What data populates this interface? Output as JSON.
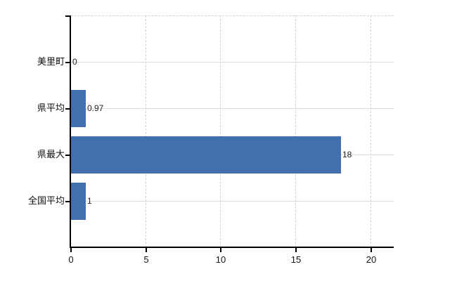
{
  "chart_data": {
    "type": "bar",
    "orientation": "horizontal",
    "title": "",
    "xlabel": "",
    "ylabel": "",
    "categories": [
      "美里町",
      "県平均",
      "県最大",
      "全国平均"
    ],
    "values": [
      0,
      0.97,
      18,
      1
    ],
    "value_labels": [
      "0",
      "0.97",
      "18",
      "1"
    ],
    "xlim": [
      0,
      20
    ],
    "x_ticks": [
      0,
      5,
      10,
      15,
      20
    ],
    "x_tick_labels": [
      "0",
      "5",
      "10",
      "15",
      "20"
    ],
    "grid": true,
    "legend": "none",
    "colors": {
      "bar": "#426fad",
      "axis": "#000000",
      "gridline_solid": "#dcdcdc",
      "gridline_dashed": "#d5d0d3",
      "text": "#111111",
      "background": "#ffffff"
    }
  }
}
